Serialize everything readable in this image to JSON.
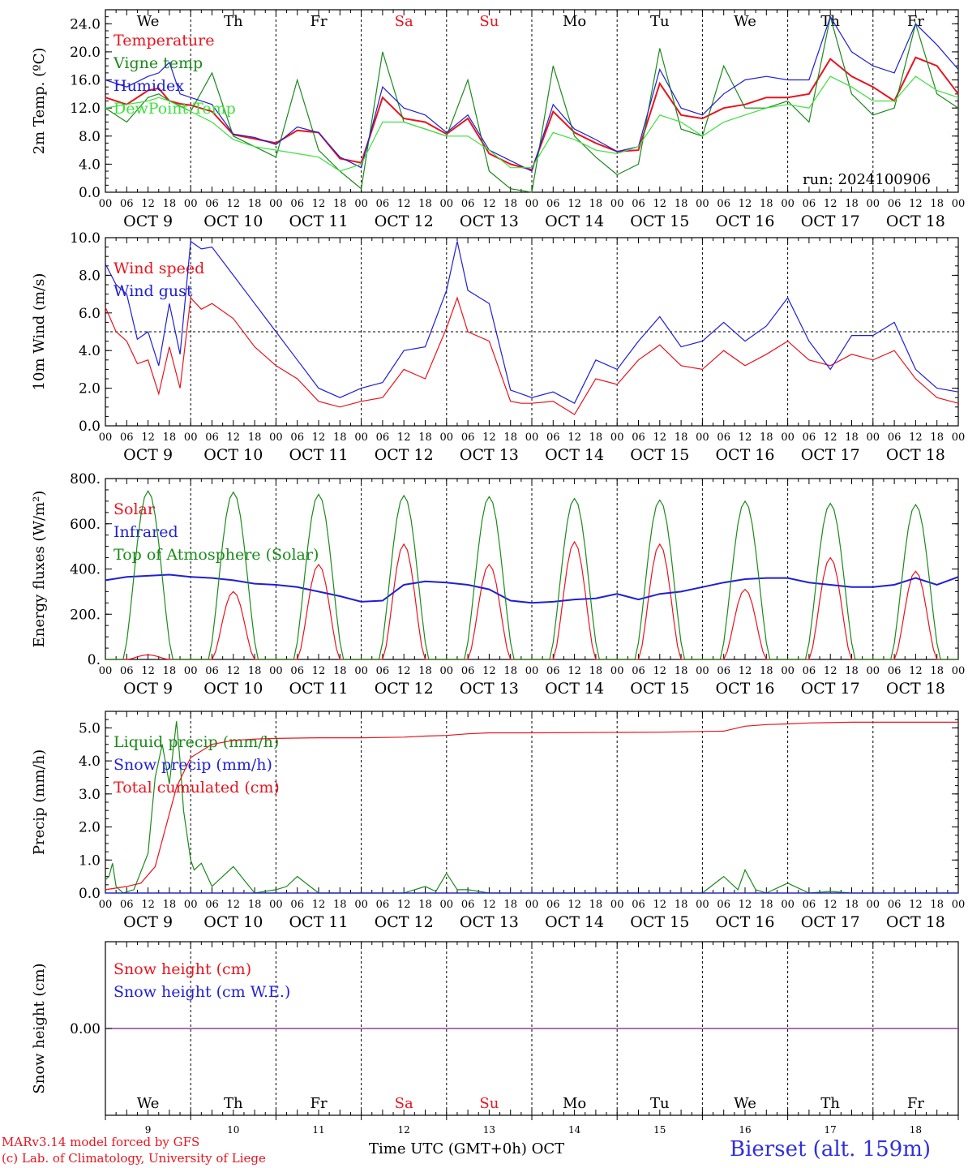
{
  "colors": {
    "red": "#e8141e",
    "green": "#1a8a1a",
    "blue": "#1f1fd6",
    "lightgreen": "#3ee03e",
    "purple": "#8a3a9a",
    "sitecolor": "#2f2fe0",
    "black": "#000000"
  },
  "days": [
    "We",
    "Th",
    "Fr",
    "Sa",
    "Su",
    "Mo",
    "Tu",
    "We",
    "Th",
    "Fr"
  ],
  "weekend_days": [
    3,
    4
  ],
  "date_labels": [
    "OCT  9",
    "OCT 10",
    "OCT 11",
    "OCT 12",
    "OCT 13",
    "OCT 14",
    "OCT 15",
    "OCT 16",
    "OCT 17",
    "OCT 18"
  ],
  "hour_labels": [
    "00",
    "06",
    "12",
    "18"
  ],
  "hour_end_label": "00",
  "bottom_day_numbers": [
    "9",
    "10",
    "11",
    "12",
    "13",
    "14",
    "15",
    "16",
    "17",
    "18"
  ],
  "run_label": "run: 2024100906",
  "footer": {
    "credit_line1": "MARv3.14 model forced by GFS",
    "credit_line2": "(c) Lab. of Climatology, University of Liege",
    "xaxis_title": "Time UTC (GMT+0h) OCT",
    "site": "Bierset (alt. 159m)"
  },
  "chart_data": [
    {
      "type": "line",
      "ylabel": "2m Temp. (ºC)",
      "ylim": [
        0,
        26
      ],
      "yticks": [
        0,
        4,
        8,
        12,
        16,
        20,
        24
      ],
      "ytick_labels": [
        "0.0",
        "4.0",
        "8.0",
        "12.0",
        "16.0",
        "20.0",
        "24.0"
      ],
      "x_unit": "hours since Oct 9 00 UTC",
      "series": [
        {
          "name": "Temperature",
          "color_key": "red",
          "x": [
            0,
            6,
            12,
            15,
            18,
            21,
            24,
            30,
            36,
            42,
            48,
            54,
            60,
            66,
            72,
            78,
            84,
            90,
            96,
            102,
            108,
            114,
            120,
            126,
            132,
            138,
            144,
            150,
            156,
            162,
            168,
            174,
            180,
            186,
            192,
            198,
            204,
            210,
            216,
            222,
            228,
            234,
            240
          ],
          "y": [
            13.5,
            12.5,
            14.5,
            14.8,
            13,
            12.6,
            12.4,
            11.5,
            8.2,
            7.6,
            7,
            8.8,
            8.5,
            4.8,
            4.2,
            13.5,
            10.5,
            10,
            8.3,
            10.5,
            5.5,
            4,
            3.2,
            11.5,
            8.5,
            7,
            5.8,
            6,
            15.5,
            11,
            10.5,
            12,
            12.5,
            13.5,
            13.5,
            14,
            19,
            16.5,
            15,
            13,
            19.2,
            18,
            14
          ]
        },
        {
          "name": "Vigne temp",
          "color_key": "green",
          "x": [
            0,
            6,
            12,
            15,
            18,
            21,
            24,
            30,
            36,
            42,
            48,
            54,
            60,
            66,
            72,
            78,
            84,
            90,
            96,
            102,
            108,
            114,
            120,
            126,
            132,
            138,
            144,
            150,
            156,
            162,
            168,
            174,
            180,
            186,
            192,
            198,
            204,
            210,
            216,
            222,
            228,
            234,
            240
          ],
          "y": [
            12,
            10,
            13.5,
            14,
            13,
            12.3,
            11.5,
            17,
            8,
            6.5,
            5,
            16,
            6,
            3,
            0.5,
            20,
            10,
            9,
            8,
            16,
            3,
            0.5,
            0,
            18,
            8,
            5,
            2.5,
            4,
            20.5,
            9,
            8,
            18,
            12,
            12,
            13,
            10,
            25,
            14,
            11,
            12,
            24,
            14,
            12
          ]
        },
        {
          "name": "Humidex",
          "color_key": "blue",
          "x": [
            0,
            6,
            12,
            15,
            18,
            21,
            24,
            30,
            36,
            42,
            48,
            54,
            60,
            66,
            72,
            78,
            84,
            90,
            96,
            102,
            108,
            114,
            120,
            126,
            132,
            138,
            144,
            150,
            156,
            162,
            168,
            174,
            180,
            186,
            192,
            198,
            204,
            210,
            216,
            222,
            228,
            234,
            240
          ],
          "y": [
            16,
            15,
            16.5,
            17,
            18.5,
            14,
            13.5,
            12.5,
            8.3,
            7.8,
            6.8,
            9.3,
            8.5,
            5,
            3.5,
            15,
            12,
            11,
            8.5,
            11,
            6,
            4.5,
            3,
            12.5,
            9,
            7.5,
            5.8,
            6.5,
            17.5,
            12,
            11,
            14,
            16,
            16.5,
            16,
            16,
            25,
            20,
            18,
            17,
            24,
            21,
            17.5
          ]
        },
        {
          "name": "DewPoint Temp",
          "color_key": "lightgreen",
          "x": [
            0,
            6,
            12,
            15,
            18,
            21,
            24,
            30,
            36,
            42,
            48,
            54,
            60,
            66,
            72,
            78,
            84,
            90,
            96,
            102,
            108,
            114,
            120,
            126,
            132,
            138,
            144,
            150,
            156,
            162,
            168,
            174,
            180,
            186,
            192,
            198,
            204,
            210,
            216,
            222,
            228,
            234,
            240
          ],
          "y": [
            12,
            12.5,
            13,
            13.5,
            13,
            12.2,
            11.5,
            10,
            7.5,
            6.5,
            6,
            5.5,
            5,
            3,
            4,
            10,
            10,
            9,
            8,
            8,
            6,
            3.5,
            3.5,
            8.5,
            7.5,
            6,
            5.5,
            6.5,
            11,
            10,
            8,
            10,
            11,
            12,
            12.5,
            12,
            16.5,
            15,
            13,
            13,
            16.5,
            14.5,
            13.5
          ]
        }
      ]
    },
    {
      "type": "line",
      "ylabel": "10m Wind (m/s)",
      "ylim": [
        0,
        10
      ],
      "yticks": [
        0,
        2,
        4,
        6,
        8,
        10
      ],
      "ytick_labels": [
        "0.0",
        "2.0",
        "4.0",
        "6.0",
        "8.0",
        "10.0"
      ],
      "reference_line": 5,
      "series": [
        {
          "name": "Wind speed",
          "color_key": "red",
          "x": [
            0,
            3,
            6,
            9,
            12,
            15,
            18,
            21,
            24,
            27,
            30,
            36,
            42,
            48,
            54,
            60,
            66,
            72,
            78,
            84,
            90,
            96,
            99,
            102,
            108,
            114,
            117,
            120,
            126,
            132,
            138,
            144,
            150,
            156,
            162,
            168,
            174,
            180,
            186,
            192,
            198,
            204,
            210,
            216,
            222,
            228,
            234,
            240
          ],
          "y": [
            6.3,
            5,
            4.5,
            3.3,
            3.5,
            1.7,
            4.2,
            2,
            6.8,
            6.2,
            6.5,
            5.7,
            4.2,
            3.2,
            2.5,
            1.3,
            1,
            1.3,
            1.5,
            3,
            2.5,
            5.2,
            6.8,
            5,
            4.5,
            1.3,
            1.2,
            1.2,
            1.3,
            0.6,
            2.5,
            2.2,
            3.5,
            4.3,
            3.2,
            3,
            4,
            3.2,
            3.8,
            4.5,
            3.5,
            3.2,
            3.8,
            3.5,
            4,
            2.5,
            1.5,
            1.2
          ]
        },
        {
          "name": "Wind gust",
          "color_key": "blue",
          "x": [
            0,
            3,
            6,
            9,
            12,
            15,
            18,
            21,
            24,
            27,
            30,
            36,
            42,
            48,
            54,
            60,
            66,
            72,
            78,
            84,
            90,
            96,
            99,
            102,
            108,
            114,
            117,
            120,
            126,
            132,
            138,
            144,
            150,
            156,
            162,
            168,
            174,
            180,
            186,
            192,
            198,
            204,
            210,
            216,
            222,
            228,
            234,
            240
          ],
          "y": [
            8.6,
            7.5,
            7,
            4.6,
            5,
            3.2,
            6.5,
            3.8,
            9.8,
            9.4,
            9.5,
            8,
            6.5,
            5,
            3.5,
            2,
            1.5,
            2,
            2.3,
            4,
            4.2,
            7.2,
            9.8,
            7.2,
            6.5,
            1.9,
            1.7,
            1.5,
            1.8,
            1.2,
            3.5,
            3,
            4.5,
            5.8,
            4.2,
            4.5,
            5.5,
            4.5,
            5.3,
            6.8,
            4.5,
            3,
            4.8,
            4.8,
            5.5,
            3,
            2,
            1.8
          ]
        }
      ]
    },
    {
      "type": "line",
      "ylabel": "Energy fluxes (W/m²)",
      "ylim": [
        0,
        800
      ],
      "yticks": [
        0,
        200,
        400,
        600,
        800
      ],
      "ytick_labels": [
        "0.",
        "200.",
        "400.",
        "600.",
        "800."
      ],
      "series": [
        {
          "name": "Solar",
          "color_key": "red",
          "daily_peaks": [
            20,
            300,
            420,
            510,
            420,
            520,
            510,
            310,
            450,
            390
          ]
        },
        {
          "name": "Infrared",
          "color_key": "blue",
          "x": [
            0,
            6,
            12,
            18,
            24,
            30,
            36,
            42,
            48,
            54,
            60,
            66,
            72,
            78,
            84,
            90,
            96,
            102,
            108,
            114,
            120,
            126,
            132,
            138,
            144,
            150,
            156,
            162,
            168,
            174,
            180,
            186,
            192,
            198,
            204,
            210,
            216,
            222,
            228,
            234,
            240
          ],
          "y": [
            350,
            365,
            370,
            375,
            365,
            360,
            350,
            335,
            330,
            320,
            300,
            280,
            255,
            260,
            330,
            345,
            340,
            330,
            310,
            260,
            250,
            255,
            265,
            270,
            290,
            265,
            290,
            300,
            320,
            340,
            355,
            360,
            360,
            340,
            330,
            320,
            320,
            330,
            360,
            330,
            365
          ]
        },
        {
          "name": "Top of Atmosphere (Solar)",
          "color_key": "green",
          "daily_peaks": [
            745,
            740,
            730,
            725,
            720,
            712,
            705,
            700,
            690,
            685
          ]
        }
      ]
    },
    {
      "type": "line",
      "ylabel": "Precip (mm/h)",
      "ylim": [
        0,
        5.5
      ],
      "yticks": [
        0,
        1,
        2,
        3,
        4,
        5
      ],
      "ytick_labels": [
        "0.0",
        "1.0",
        "2.0",
        "3.0",
        "4.0",
        "5.0"
      ],
      "series": [
        {
          "name": "Liquid precip (mm/h)",
          "color_key": "green",
          "x": [
            0,
            1,
            2,
            3,
            5,
            8,
            12,
            14,
            16,
            18,
            20,
            21,
            22,
            24,
            25,
            27,
            30,
            33,
            36,
            39,
            42,
            48,
            51,
            54,
            60,
            66,
            72,
            84,
            90,
            93,
            96,
            99,
            102,
            108,
            114,
            120,
            132,
            156,
            168,
            174,
            178,
            180,
            183,
            186,
            192,
            198,
            204,
            210,
            216,
            240
          ],
          "y": [
            0.4,
            0.5,
            0.9,
            0.2,
            0,
            0.1,
            1.2,
            3.5,
            4.5,
            3.3,
            5.2,
            4,
            2.5,
            1,
            0.7,
            0.9,
            0.2,
            0.5,
            0.8,
            0.4,
            0,
            0.1,
            0.2,
            0.5,
            0,
            0,
            0,
            0,
            0.2,
            0.05,
            0.6,
            0.1,
            0.1,
            0,
            0,
            0,
            0,
            0,
            0,
            0.5,
            0.1,
            0.7,
            0.1,
            0,
            0.3,
            0,
            0.05,
            0,
            0,
            0
          ]
        },
        {
          "name": "Snow precip (mm/h)",
          "color_key": "blue",
          "x": [
            0,
            240
          ],
          "y": [
            0,
            0
          ]
        },
        {
          "name": "Total cumulated (cm)",
          "color_key": "red",
          "x": [
            0,
            6,
            10,
            14,
            18,
            20,
            24,
            30,
            36,
            42,
            48,
            60,
            72,
            84,
            90,
            96,
            102,
            108,
            120,
            156,
            174,
            180,
            186,
            192,
            198,
            210,
            240
          ],
          "y": [
            0.1,
            0.2,
            0.3,
            0.8,
            2.4,
            3.2,
            4.1,
            4.5,
            4.62,
            4.66,
            4.68,
            4.7,
            4.7,
            4.72,
            4.75,
            4.77,
            4.82,
            4.85,
            4.85,
            4.87,
            4.9,
            5.05,
            5.1,
            5.12,
            5.15,
            5.17,
            5.17
          ]
        }
      ]
    },
    {
      "type": "line",
      "ylabel": "Snow height (cm)",
      "ytick_labels": [
        "0.00"
      ],
      "series": [
        {
          "name": "Snow height (cm)",
          "color_key": "red",
          "x": [
            0,
            240
          ],
          "y": [
            0,
            0
          ]
        },
        {
          "name": "Snow height (cm W.E.)",
          "color_key": "blue",
          "x": [
            0,
            240
          ],
          "y": [
            0,
            0
          ]
        }
      ]
    }
  ]
}
